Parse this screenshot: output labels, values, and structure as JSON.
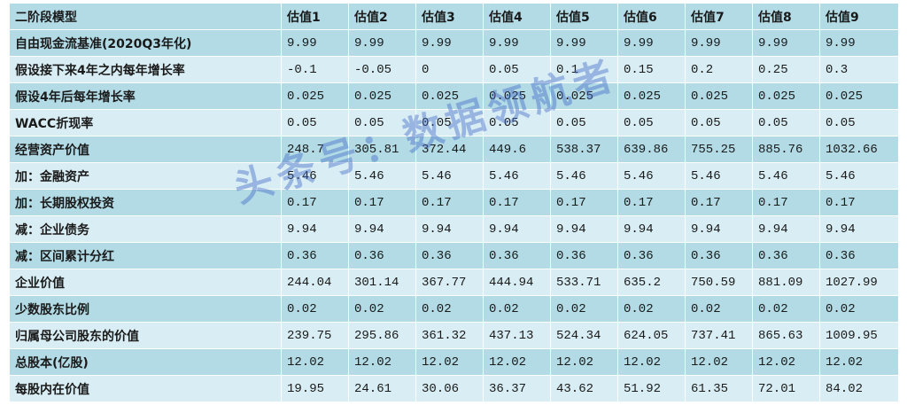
{
  "table": {
    "header": [
      "二阶段模型",
      "估值1",
      "估值2",
      "估值3",
      "估值4",
      "估值5",
      "估值6",
      "估值7",
      "估值8",
      "估值9"
    ],
    "rows": [
      [
        "自由现金流基准(2020Q3年化)",
        "9.99",
        "9.99",
        "9.99",
        "9.99",
        "9.99",
        "9.99",
        "9.99",
        "9.99",
        "9.99"
      ],
      [
        "假设接下来4年之内每年增长率",
        "-0.1",
        "-0.05",
        "0",
        "0.05",
        "0.1",
        "0.15",
        "0.2",
        "0.25",
        "0.3"
      ],
      [
        "假设4年后每年增长率",
        "0.025",
        "0.025",
        "0.025",
        "0.025",
        "0.025",
        "0.025",
        "0.025",
        "0.025",
        "0.025"
      ],
      [
        "WACC折现率",
        "0.05",
        "0.05",
        "0.05",
        "0.05",
        "0.05",
        "0.05",
        "0.05",
        "0.05",
        "0.05"
      ],
      [
        "经营资产价值",
        "248.7",
        "305.81",
        "372.44",
        "449.6",
        "538.37",
        "639.86",
        "755.25",
        "885.76",
        "1032.66"
      ],
      [
        "加：金融资产",
        "5.46",
        "5.46",
        "5.46",
        "5.46",
        "5.46",
        "5.46",
        "5.46",
        "5.46",
        "5.46"
      ],
      [
        "加：长期股权投资",
        "0.17",
        "0.17",
        "0.17",
        "0.17",
        "0.17",
        "0.17",
        "0.17",
        "0.17",
        "0.17"
      ],
      [
        "减：企业债务",
        "9.94",
        "9.94",
        "9.94",
        "9.94",
        "9.94",
        "9.94",
        "9.94",
        "9.94",
        "9.94"
      ],
      [
        "减：区间累计分红",
        "0.36",
        "0.36",
        "0.36",
        "0.36",
        "0.36",
        "0.36",
        "0.36",
        "0.36",
        "0.36"
      ],
      [
        "企业价值",
        "244.04",
        "301.14",
        "367.77",
        "444.94",
        "533.71",
        "635.2",
        "750.59",
        "881.09",
        "1027.99"
      ],
      [
        "少数股东比例",
        "0.02",
        "0.02",
        "0.02",
        "0.02",
        "0.02",
        "0.02",
        "0.02",
        "0.02",
        "0.02"
      ],
      [
        "归属母公司股东的价值",
        "239.75",
        "295.86",
        "361.32",
        "437.13",
        "524.34",
        "624.05",
        "737.41",
        "865.63",
        "1009.95"
      ],
      [
        "总股本(亿股)",
        "12.02",
        "12.02",
        "12.02",
        "12.02",
        "12.02",
        "12.02",
        "12.02",
        "12.02",
        "12.02"
      ],
      [
        "每股内在价值",
        "19.95",
        "24.61",
        "30.06",
        "36.37",
        "43.62",
        "51.92",
        "61.35",
        "72.01",
        "84.02"
      ]
    ]
  },
  "watermark": "头条号：数据领航者"
}
